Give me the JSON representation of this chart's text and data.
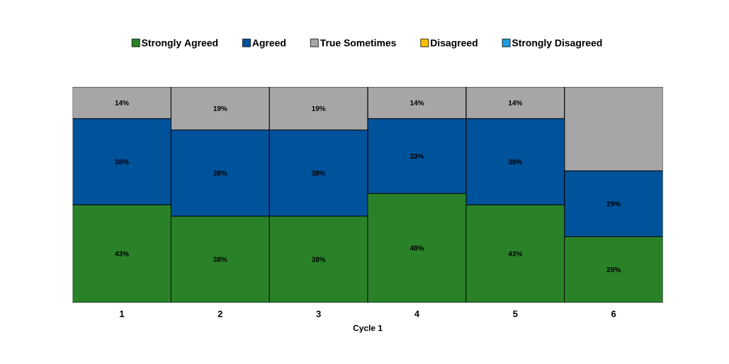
{
  "chart_data": {
    "type": "bar",
    "stacked": true,
    "tick_labels": "x",
    "xlabel": "Cycle 1",
    "legend": "top",
    "categories": [
      "1",
      "2",
      "3",
      "4",
      "5",
      "6"
    ],
    "series": [
      {
        "name": "Strongly Agreed",
        "color": "#2a8228",
        "values": [
          43,
          38,
          38,
          48,
          43,
          29
        ],
        "value_labels": [
          "43%",
          "38%",
          "38%",
          "48%",
          "43%",
          "29%"
        ]
      },
      {
        "name": "Agreed",
        "color": "#00529b",
        "values": [
          38,
          38,
          38,
          33,
          38,
          29
        ],
        "value_labels": [
          "38%",
          "38%",
          "38%",
          "33%",
          "38%",
          "29%"
        ]
      },
      {
        "name": "True Sometimes",
        "color": "#a6a6a6",
        "values": [
          14,
          19,
          19,
          14,
          14,
          37
        ],
        "value_labels": [
          "14%",
          "19%",
          "19%",
          "14%",
          "14%",
          null
        ]
      },
      {
        "name": "Disagreed",
        "color": "#ffc000",
        "values": [
          0,
          0,
          0,
          0,
          0,
          0
        ]
      },
      {
        "name": "Strongly Disagreed",
        "color": "#1f9bde",
        "values": [
          0,
          0,
          0,
          0,
          0,
          0
        ]
      }
    ]
  }
}
